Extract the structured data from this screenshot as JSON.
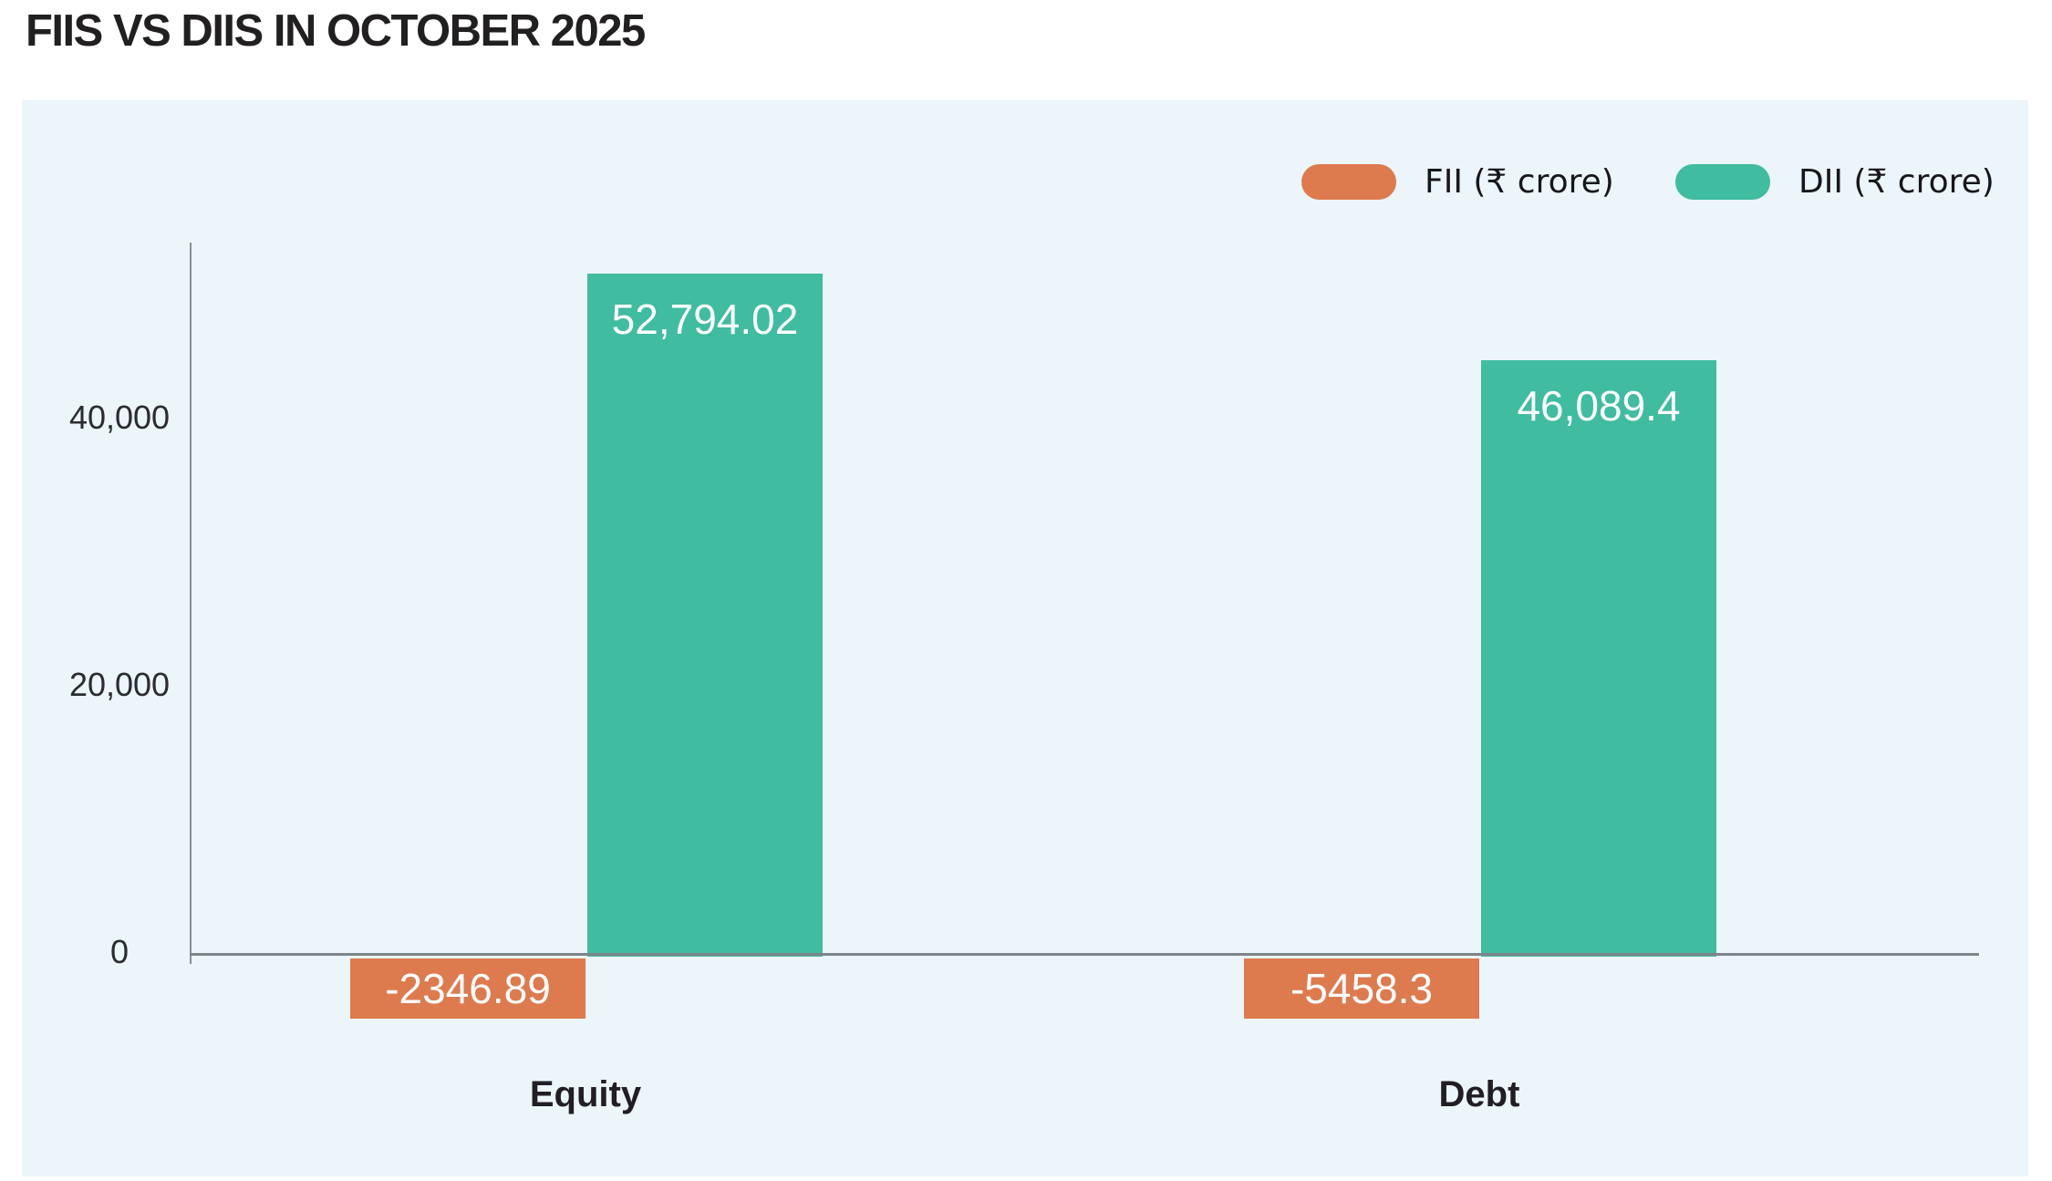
{
  "header": {
    "title": "FIIS VS DIIS IN OCTOBER 2025"
  },
  "chart_data": {
    "type": "bar",
    "title": "FIIS VS DIIS IN OCTOBER 2025",
    "categories": [
      "Equity",
      "Debt"
    ],
    "series": [
      {
        "name": "FII (₹ crore)",
        "color": "#dd7b4f",
        "values": [
          -2346.89,
          -5458.3
        ],
        "display": [
          "-2346.89",
          "-5458.3"
        ]
      },
      {
        "name": "DII (₹ crore)",
        "color": "#40bca0",
        "values": [
          52794.02,
          46089.4
        ],
        "display": [
          "52,794.02",
          "46,089.4"
        ]
      }
    ],
    "yticks": [
      {
        "value": 0,
        "label": "0"
      },
      {
        "value": 20000,
        "label": "20,000"
      },
      {
        "value": 40000,
        "label": "40,000"
      }
    ],
    "ylim": [
      -6500,
      56000
    ],
    "grid": false,
    "legend_position": "top-right",
    "value_label_color": "#ffffff",
    "panel_background": "#ecf5f9",
    "axis_color": "#848a92"
  }
}
